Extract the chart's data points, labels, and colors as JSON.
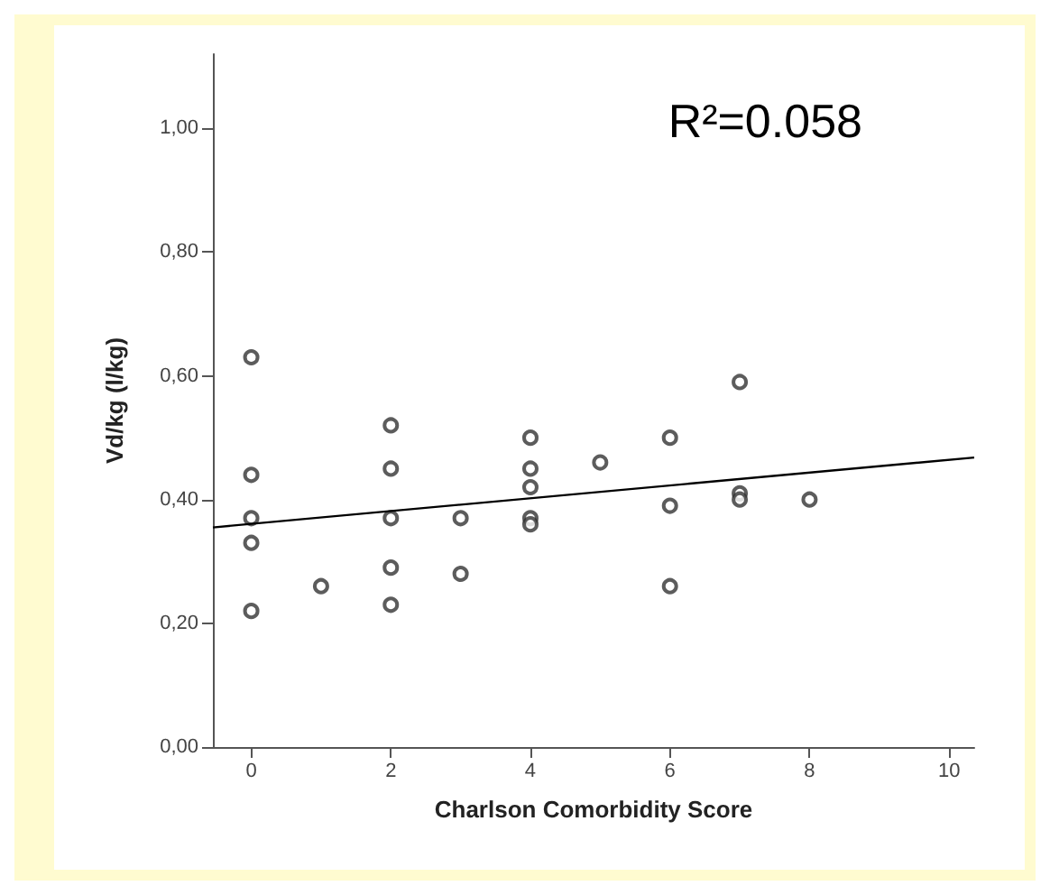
{
  "chart_data": {
    "type": "scatter",
    "xlabel": "Charlson Comorbidity Score",
    "ylabel": "Vd/kg (l/kg)",
    "annotations": [
      "R²=0.058"
    ],
    "marker": "circle",
    "grid": false,
    "xlim": [
      -0.55,
      10.36
    ],
    "xticks": [
      0,
      2,
      4,
      6,
      8,
      10
    ],
    "ylim": [
      0,
      1.12
    ],
    "yticks": [
      {
        "value": 0,
        "label": "0,00"
      },
      {
        "value": 0.2,
        "label": "0,20"
      },
      {
        "value": 0.4,
        "label": "0,40"
      },
      {
        "value": 0.6,
        "label": "0,60"
      },
      {
        "value": 0.8,
        "label": "0,80"
      },
      {
        "value": 1,
        "label": "1,00"
      }
    ],
    "series": [
      {
        "color": "#333333",
        "x": [
          0,
          0,
          0,
          0,
          0,
          1,
          2,
          2,
          2,
          2,
          2,
          3,
          3,
          4,
          4,
          4,
          4,
          4,
          5,
          6,
          6,
          6,
          7,
          7,
          7,
          8
        ],
        "values": [
          0.63,
          0.44,
          0.37,
          0.33,
          0.22,
          0.26,
          0.52,
          0.45,
          0.37,
          0.29,
          0.23,
          0.37,
          0.28,
          0.5,
          0.45,
          0.42,
          0.37,
          0.36,
          0.46,
          0.5,
          0.39,
          0.26,
          0.59,
          0.41,
          0.4,
          0.4
        ]
      },
      {
        "type": "line",
        "color": "#000000",
        "marker": "none",
        "x": [
          -0.55,
          10.36
        ],
        "values": [
          0.355,
          0.468
        ]
      }
    ]
  }
}
